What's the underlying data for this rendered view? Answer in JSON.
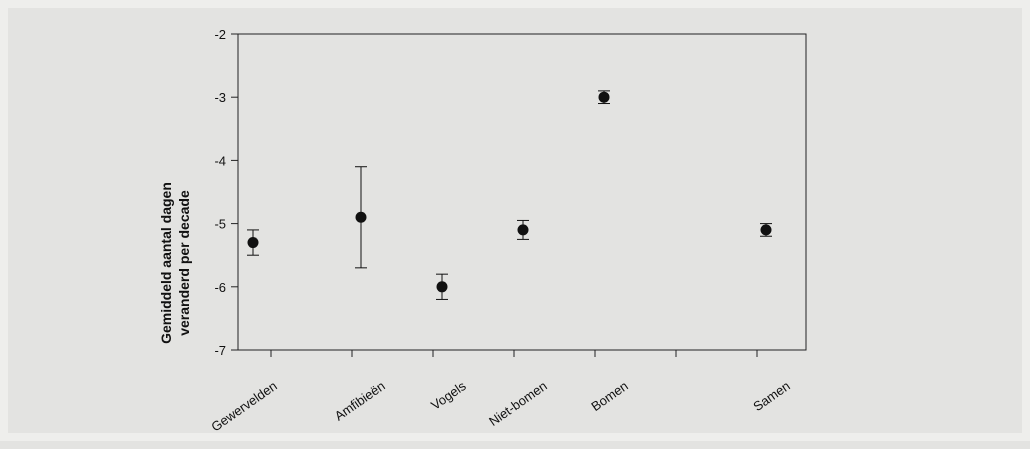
{
  "chart_data": {
    "type": "scatter",
    "ylabel_lines": [
      "Gemiddeld aantal dagen",
      "veranderd per decade"
    ],
    "ylim": [
      -7,
      -2
    ],
    "yticks": [
      "-2",
      "-3",
      "-4",
      "-5",
      "-6",
      "-7"
    ],
    "categories": [
      "Gewervelden",
      "Amfibieën",
      "Vogels",
      "Niet-bomen",
      "Bomen",
      "Samen"
    ],
    "points": [
      {
        "category": "Gewervelden",
        "y": -5.3,
        "err_low": -5.5,
        "err_high": -5.1
      },
      {
        "category": "Amfibieën",
        "y": -4.9,
        "err_low": -5.7,
        "err_high": -4.1
      },
      {
        "category": "Vogels",
        "y": -6.0,
        "err_low": -6.2,
        "err_high": -5.8
      },
      {
        "category": "Niet-bomen",
        "y": -5.1,
        "err_low": -5.25,
        "err_high": -4.95
      },
      {
        "category": "Bomen",
        "y": -3.0,
        "err_low": -3.1,
        "err_high": -2.9
      },
      {
        "category": "Samen",
        "y": -5.1,
        "err_low": -5.2,
        "err_high": -5.0
      }
    ],
    "grid": false,
    "marker_color": "#111111"
  }
}
